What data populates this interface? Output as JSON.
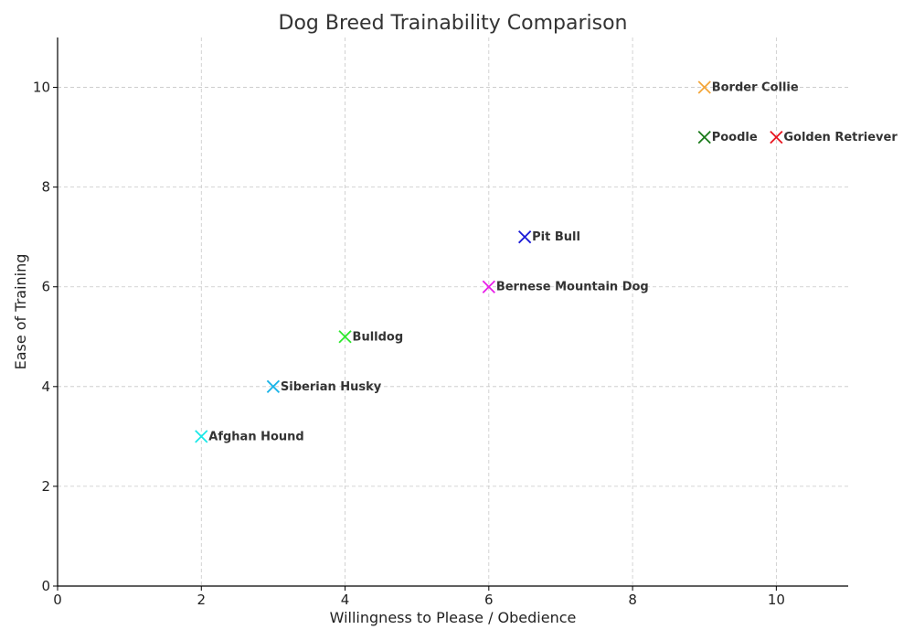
{
  "chart_data": {
    "type": "scatter",
    "title": "Dog Breed Trainability Comparison",
    "xlabel": "Willingness to Please / Obedience",
    "ylabel": "Ease of Training",
    "xlim": [
      0,
      11
    ],
    "ylim": [
      0,
      11
    ],
    "xticks": [
      0,
      2,
      4,
      6,
      8,
      10
    ],
    "yticks": [
      0,
      2,
      4,
      6,
      8,
      10
    ],
    "grid": true,
    "marker": "x",
    "points": [
      {
        "label": "Border Collie",
        "x": 9,
        "y": 10,
        "color": "#f4a63a"
      },
      {
        "label": "Poodle",
        "x": 9,
        "y": 9,
        "color": "#1a7a1a"
      },
      {
        "label": "Golden Retriever",
        "x": 10,
        "y": 9,
        "color": "#e8141e"
      },
      {
        "label": "Pit Bull",
        "x": 6.5,
        "y": 7,
        "color": "#1a1ad6"
      },
      {
        "label": "Bernese Mountain Dog",
        "x": 6,
        "y": 6,
        "color": "#e81ee8"
      },
      {
        "label": "Bulldog",
        "x": 4,
        "y": 5,
        "color": "#2ee82e"
      },
      {
        "label": "Siberian Husky",
        "x": 3,
        "y": 4,
        "color": "#1ab4e8"
      },
      {
        "label": "Afghan Hound",
        "x": 2,
        "y": 3,
        "color": "#1ae8e8"
      }
    ]
  }
}
